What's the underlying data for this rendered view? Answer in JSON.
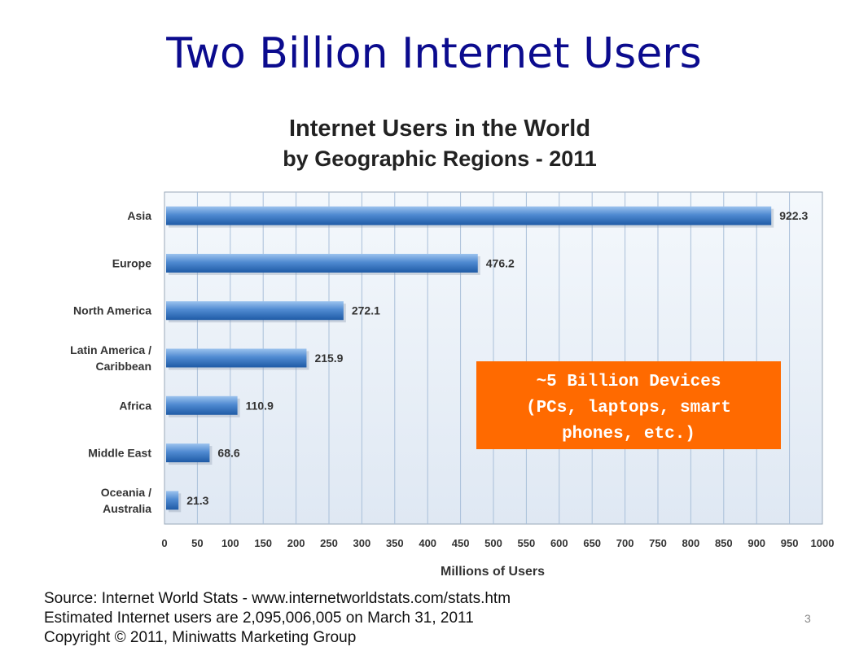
{
  "slide": {
    "title": "Two Billion Internet Users",
    "page_number": "3"
  },
  "callout": {
    "lines": [
      "~5 Billion Devices",
      "(PCs, laptops, smart",
      "phones, etc.)"
    ],
    "color": "#ff6a00"
  },
  "source": {
    "lines": [
      "Source: Internet World Stats - www.internetworldstats.com/stats.htm",
      "Estimated Internet users are 2,095,006,005 on March 31, 2011",
      "Copyright © 2011, Miniwatts Marketing Group"
    ]
  },
  "chart_data": {
    "type": "bar",
    "orientation": "horizontal",
    "title": "Internet Users in the World",
    "subtitle": "by Geographic Regions - 2011",
    "categories": [
      [
        "Asia"
      ],
      [
        "Europe"
      ],
      [
        "North America"
      ],
      [
        "Latin America /",
        "Caribbean"
      ],
      [
        "Africa"
      ],
      [
        "Middle East"
      ],
      [
        "Oceania  /",
        "Australia"
      ]
    ],
    "values": [
      922.3,
      476.2,
      272.1,
      215.9,
      110.9,
      68.6,
      21.3
    ],
    "value_labels": [
      "922.3",
      "476.2",
      "272.1",
      "215.9",
      "110.9",
      "68.6",
      "21.3"
    ],
    "xlabel": "Millions of Users",
    "ylabel": "",
    "xlim": [
      0,
      1000
    ],
    "xticks": [
      0,
      50,
      100,
      150,
      200,
      250,
      300,
      350,
      400,
      450,
      500,
      550,
      600,
      650,
      700,
      750,
      800,
      850,
      900,
      950,
      1000
    ],
    "grid": true,
    "legend": "none",
    "colors": {
      "bar": "#3e7bc4",
      "bar_light": "#8fb8e6",
      "plot_bg": "#e9f0f8",
      "grid": "#a9bfd9",
      "title": "#222222"
    }
  }
}
